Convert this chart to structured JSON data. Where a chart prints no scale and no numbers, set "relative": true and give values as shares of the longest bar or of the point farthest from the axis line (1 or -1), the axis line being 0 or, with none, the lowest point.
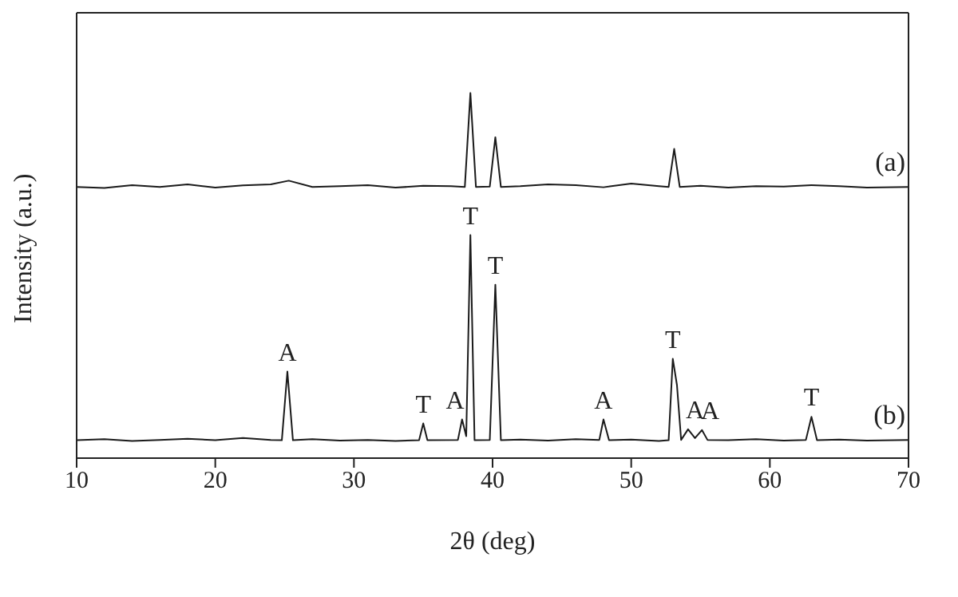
{
  "chart_data": {
    "type": "line",
    "relative": true,
    "xlabel": "2θ (deg)",
    "ylabel": "Intensity (a.u.)",
    "xlim": [
      10,
      70
    ],
    "xticks": [
      10,
      20,
      30,
      40,
      50,
      60,
      70
    ],
    "legend": false,
    "marker": "none",
    "line_style": "solid",
    "series": [
      {
        "name": "(a)",
        "color": "#1a1a1a",
        "x": [
          10,
          12,
          14,
          16,
          18,
          20,
          22,
          24,
          25.3,
          27,
          29,
          31,
          33,
          35,
          37,
          38.0,
          38.4,
          38.8,
          39.8,
          40.2,
          40.6,
          42,
          44,
          46,
          48,
          50,
          52,
          52.7,
          53.1,
          53.5,
          55,
          57,
          59,
          61,
          63,
          65,
          67,
          70
        ],
        "values": [
          0.743,
          0.74,
          0.748,
          0.743,
          0.75,
          0.741,
          0.747,
          0.75,
          0.76,
          0.743,
          0.745,
          0.748,
          0.741,
          0.746,
          0.745,
          0.743,
          1.0,
          0.743,
          0.744,
          0.879,
          0.743,
          0.745,
          0.75,
          0.748,
          0.742,
          0.752,
          0.745,
          0.743,
          0.847,
          0.743,
          0.746,
          0.741,
          0.745,
          0.744,
          0.748,
          0.745,
          0.741,
          0.743
        ]
      },
      {
        "name": "(b)",
        "color": "#1a1a1a",
        "x": [
          10,
          12,
          14,
          16,
          18,
          20,
          22,
          24,
          24.8,
          25.2,
          25.6,
          27,
          29,
          31,
          33,
          34.7,
          35.0,
          35.3,
          37.5,
          37.8,
          38.1,
          38.4,
          38.7,
          39.8,
          40.2,
          40.6,
          42,
          44,
          46,
          47.7,
          48.0,
          48.4,
          50,
          52,
          52.7,
          53.0,
          53.3,
          53.6,
          54.1,
          54.6,
          55.1,
          55.5,
          57,
          59,
          61,
          62.6,
          63.0,
          63.4,
          65,
          67,
          70
        ],
        "values": [
          0.049,
          0.052,
          0.047,
          0.05,
          0.053,
          0.049,
          0.055,
          0.05,
          0.049,
          0.237,
          0.049,
          0.052,
          0.048,
          0.05,
          0.047,
          0.049,
          0.095,
          0.049,
          0.05,
          0.106,
          0.06,
          0.611,
          0.049,
          0.05,
          0.475,
          0.049,
          0.051,
          0.048,
          0.052,
          0.05,
          0.106,
          0.049,
          0.051,
          0.047,
          0.049,
          0.272,
          0.2,
          0.05,
          0.079,
          0.055,
          0.077,
          0.05,
          0.049,
          0.052,
          0.048,
          0.05,
          0.113,
          0.049,
          0.051,
          0.048,
          0.05
        ]
      }
    ],
    "annotations": [
      {
        "text": "A",
        "x": 25.2,
        "y": 0.237
      },
      {
        "text": "T",
        "x": 35.0,
        "y": 0.095
      },
      {
        "text": "A",
        "x": 37.3,
        "y": 0.106
      },
      {
        "text": "T",
        "x": 38.4,
        "y": 0.611
      },
      {
        "text": "T",
        "x": 40.2,
        "y": 0.475
      },
      {
        "text": "A",
        "x": 48.0,
        "y": 0.106
      },
      {
        "text": "T",
        "x": 53.0,
        "y": 0.272
      },
      {
        "text": "A",
        "x": 54.6,
        "y": 0.079
      },
      {
        "text": "A",
        "x": 55.7,
        "y": 0.077
      },
      {
        "text": "T",
        "x": 63.0,
        "y": 0.113
      }
    ]
  }
}
